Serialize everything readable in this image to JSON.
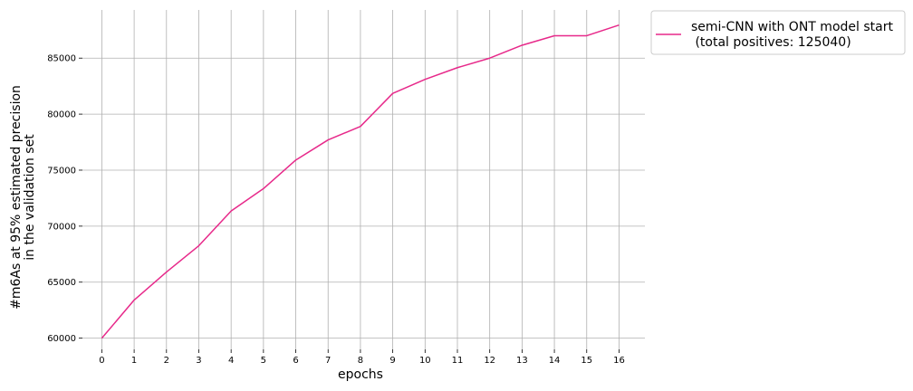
{
  "chart_data": {
    "type": "line",
    "title": "",
    "xlabel": "epochs",
    "ylabel_lines": [
      "#m6As at 95% estimated precision",
      "in the validation set"
    ],
    "x": [
      0,
      1,
      2,
      3,
      4,
      5,
      6,
      7,
      8,
      9,
      10,
      11,
      12,
      13,
      14,
      15,
      16
    ],
    "series": [
      {
        "name": "semi-CNN with ONT model start",
        "legend_lines": [
          "semi-CNN with ONT model start",
          " (total positives: 125040)"
        ],
        "color": "#e7298a",
        "values": [
          60000,
          63400,
          65900,
          68250,
          71350,
          73350,
          75900,
          77700,
          78900,
          81850,
          83100,
          84150,
          85000,
          86150,
          87000,
          87000,
          87950
        ]
      }
    ],
    "xlim": [
      -0.6,
      16.8
    ],
    "ylim": [
      59000,
      89300
    ],
    "yticks": [
      60000,
      65000,
      70000,
      75000,
      80000,
      85000
    ],
    "xticks": [
      0,
      1,
      2,
      3,
      4,
      5,
      6,
      7,
      8,
      9,
      10,
      11,
      12,
      13,
      14,
      15,
      16
    ],
    "grid": true,
    "legend_position": "outside-top-right"
  }
}
